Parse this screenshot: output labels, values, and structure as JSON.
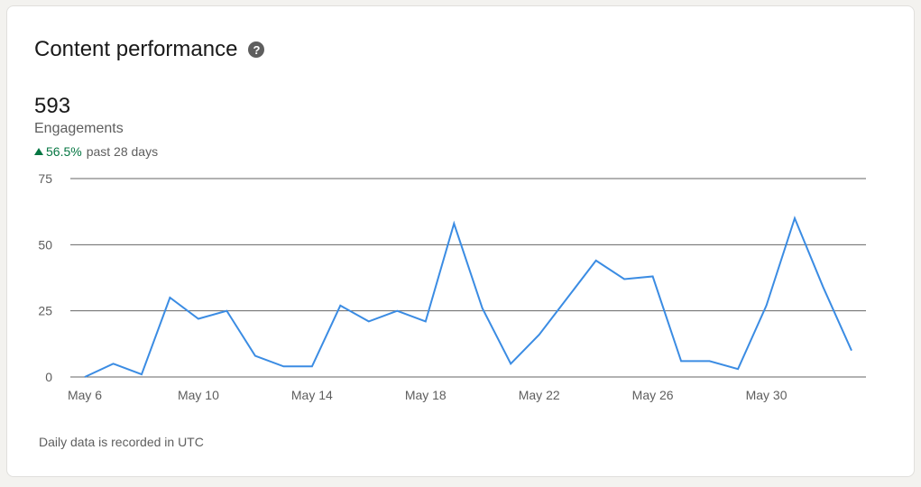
{
  "header": {
    "title": "Content performance",
    "help_icon": "question-circle-icon"
  },
  "metric": {
    "value": "593",
    "label": "Engagements",
    "change_percent": "56.5%",
    "change_direction": "up",
    "change_period": "past 28 days"
  },
  "footnote": "Daily data is recorded in UTC",
  "colors": {
    "line": "#3b8ce3",
    "positive": "#057642",
    "gridline": "#666666"
  },
  "chart_data": {
    "type": "line",
    "title": "",
    "xlabel": "",
    "ylabel": "",
    "ylim": [
      0,
      75
    ],
    "yticks": [
      "0",
      "25",
      "50",
      "75"
    ],
    "xticks": [
      "May 6",
      "May 10",
      "May 14",
      "May 18",
      "May 22",
      "May 26",
      "May 30"
    ],
    "grid": true,
    "series": [
      {
        "x": [
          "May 6",
          "May 7",
          "May 8",
          "May 9",
          "May 10",
          "May 11",
          "May 12",
          "May 13",
          "May 14",
          "May 15",
          "May 16",
          "May 17",
          "May 18",
          "May 19",
          "May 20",
          "May 21",
          "May 22",
          "May 23",
          "May 24",
          "May 25",
          "May 26",
          "May 27",
          "May 28",
          "May 29",
          "May 30",
          "May 31",
          "Jun 1",
          "Jun 2"
        ],
        "values": [
          0,
          5,
          1,
          30,
          22,
          25,
          8,
          4,
          4,
          27,
          21,
          25,
          21,
          58,
          26,
          5,
          16,
          30,
          44,
          37,
          38,
          6,
          6,
          3,
          27,
          60,
          34,
          10
        ]
      }
    ]
  }
}
